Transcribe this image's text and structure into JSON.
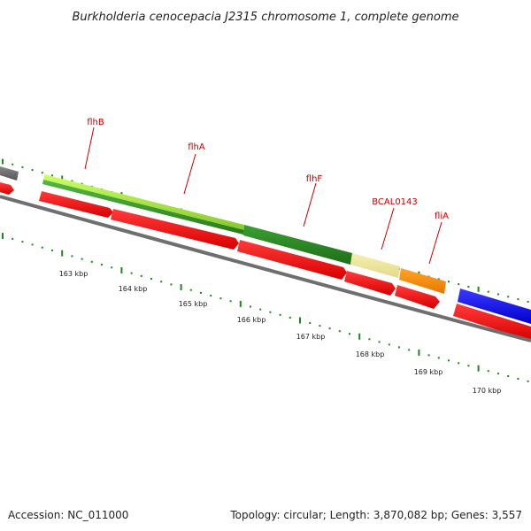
{
  "title": "Burkholderia cenocepacia J2315 chromosome 1, complete genome",
  "footer": {
    "accession": "Accession: NC_011000",
    "summary": "Topology: circular; Length: 3,870,082 bp; Genes: 3,557"
  },
  "colors": {
    "backbone": "#777777",
    "cds_red": "#ff0000",
    "tick_green": "#1a8a1a",
    "label_red": "#c40000",
    "flhB": "#99e633",
    "flhA": "#3a9a2a",
    "flhF": "#2a8a22",
    "BCAL0143": "#eee899",
    "fliA": "#ff8c00",
    "next_gene": "#0000ee",
    "prev_gene": "#666666"
  },
  "gene_labels": [
    "flhB",
    "flhA",
    "flhF",
    "BCAL0143",
    "fliA"
  ],
  "kbp_labels": [
    "163 kbp",
    "164 kbp",
    "165 kbp",
    "166 kbp",
    "167 kbp",
    "168 kbp",
    "169 kbp",
    "170 kbp"
  ]
}
